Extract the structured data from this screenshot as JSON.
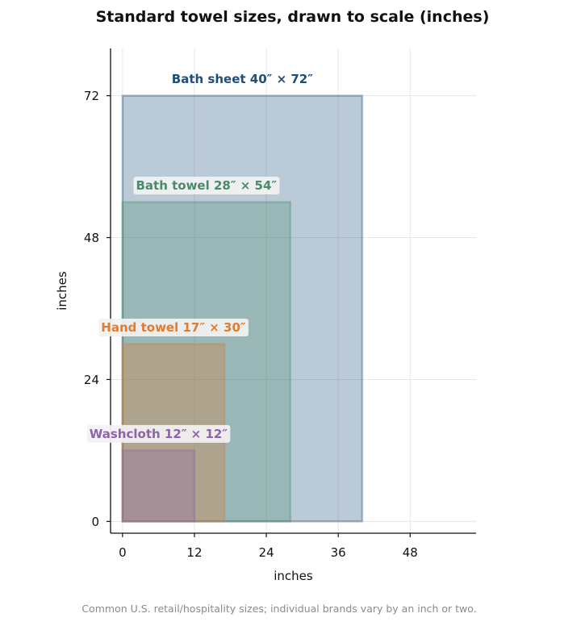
{
  "chart_data": {
    "type": "rect-scale",
    "title": "Standard towel sizes, drawn to scale (inches)",
    "xlabel": "inches",
    "ylabel": "inches",
    "xlim": [
      -2,
      59
    ],
    "ylim": [
      -2,
      80
    ],
    "xticks": [
      0,
      12,
      24,
      36,
      48
    ],
    "yticks": [
      0,
      24,
      48,
      72
    ],
    "grid": true,
    "footnote": "Common U.S. retail/hospitality sizes; individual brands vary by an inch or two.",
    "series": [
      {
        "name": "Bath sheet",
        "label": "Bath sheet  40″ × 72″",
        "width": 40,
        "height": 72,
        "color": "#1f4e79",
        "label_box": false
      },
      {
        "name": "Bath towel",
        "label": "Bath towel  28″ × 54″",
        "width": 28,
        "height": 54,
        "color": "#4a8a6b",
        "label_box": true
      },
      {
        "name": "Hand towel",
        "label": "Hand towel  17″ × 30″",
        "width": 17,
        "height": 30,
        "color": "#e07b32",
        "label_box": true
      },
      {
        "name": "Washcloth",
        "label": "Washcloth  12″ × 12″",
        "width": 12,
        "height": 12,
        "color": "#8e63a8",
        "label_box": true
      }
    ]
  }
}
